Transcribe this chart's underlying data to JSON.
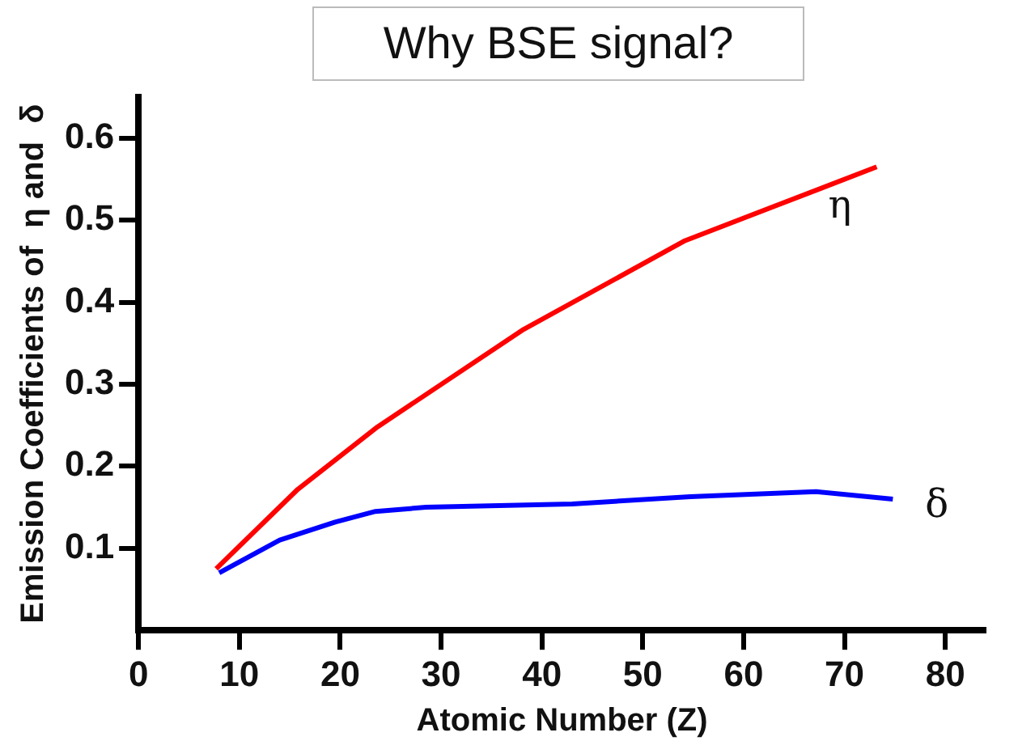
{
  "chart_data": {
    "type": "line",
    "title": "Why BSE signal?",
    "xlabel": "Atomic Number (Z)",
    "ylabel": "Emission Coefficients of  η and  δ",
    "xlim": [
      0,
      84
    ],
    "xticks": [
      0,
      10,
      20,
      30,
      40,
      50,
      60,
      70,
      80
    ],
    "ylim": [
      0,
      0.65
    ],
    "yticks": [
      0.1,
      0.2,
      0.3,
      0.4,
      0.5,
      0.6
    ],
    "grid": false,
    "legend": false,
    "marker": "none",
    "line_style": "solid",
    "series": [
      {
        "name": "η",
        "color": "#ff0000",
        "x": [
          7.7,
          15.8,
          23.7,
          38.2,
          54.2,
          73.2
        ],
        "values": [
          0.075,
          0.172,
          0.248,
          0.367,
          0.475,
          0.565
        ]
      },
      {
        "name": "δ",
        "color": "#0000ff",
        "x": [
          8,
          14,
          19.5,
          23.5,
          28.5,
          43,
          54.7,
          67.2,
          74.8
        ],
        "values": [
          0.07,
          0.11,
          0.132,
          0.145,
          0.15,
          0.154,
          0.163,
          0.169,
          0.16
        ]
      }
    ]
  }
}
